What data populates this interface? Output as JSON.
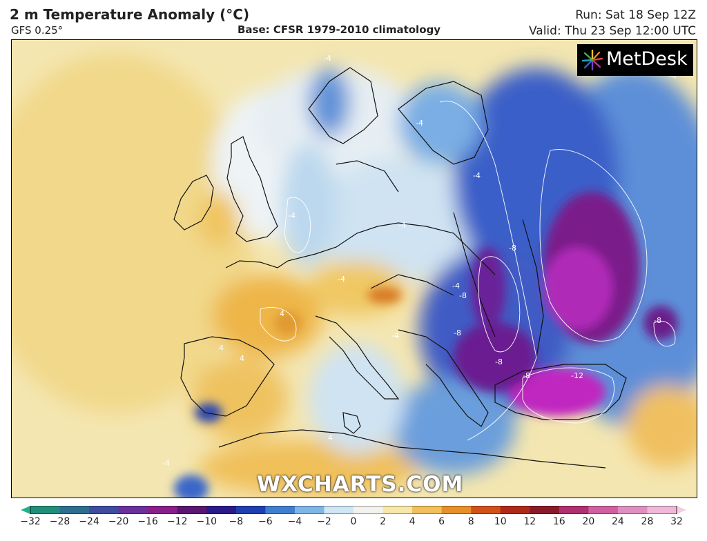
{
  "header": {
    "title": "2 m Temperature Anomaly (°C)",
    "model": "GFS 0.25°",
    "base": "Base: CFSR 1979-2010 climatology",
    "run": "Run: Sat 18 Sep 12Z",
    "valid": "Valid: Thu 23 Sep 12:00 UTC"
  },
  "branding": {
    "logo": "MetDesk",
    "watermark": "WXCHARTS.COM"
  },
  "map": {
    "contour_labels": [
      "-4",
      "-4",
      "-4",
      "-4",
      "-4",
      "-4",
      "-4",
      "-4",
      "-4",
      "-8",
      "-8",
      "-8",
      "-8",
      "-8",
      "-8",
      "-12",
      "-4",
      "4",
      "4",
      "4",
      "4"
    ]
  },
  "colorbar": {
    "ticks": [
      "−32",
      "−28",
      "−24",
      "−20",
      "−16",
      "−12",
      "−10",
      "−8",
      "−6",
      "−4",
      "−2",
      "0",
      "2",
      "4",
      "6",
      "8",
      "10",
      "12",
      "16",
      "20",
      "24",
      "28",
      "32"
    ],
    "colors": [
      "#1f8f7a",
      "#2e6f8f",
      "#3f4ca0",
      "#6b2f9e",
      "#8a1f8a",
      "#5a1670",
      "#2a1a8a",
      "#1f3fb0",
      "#3f7fd0",
      "#7fb6e8",
      "#cfe6f5",
      "#f3f3ee",
      "#f7e7a8",
      "#f1c05a",
      "#e7902a",
      "#d4501a",
      "#b02a1a",
      "#8a1a2a",
      "#b03070",
      "#d060a0",
      "#e090c0",
      "#f0b8d8"
    ]
  }
}
